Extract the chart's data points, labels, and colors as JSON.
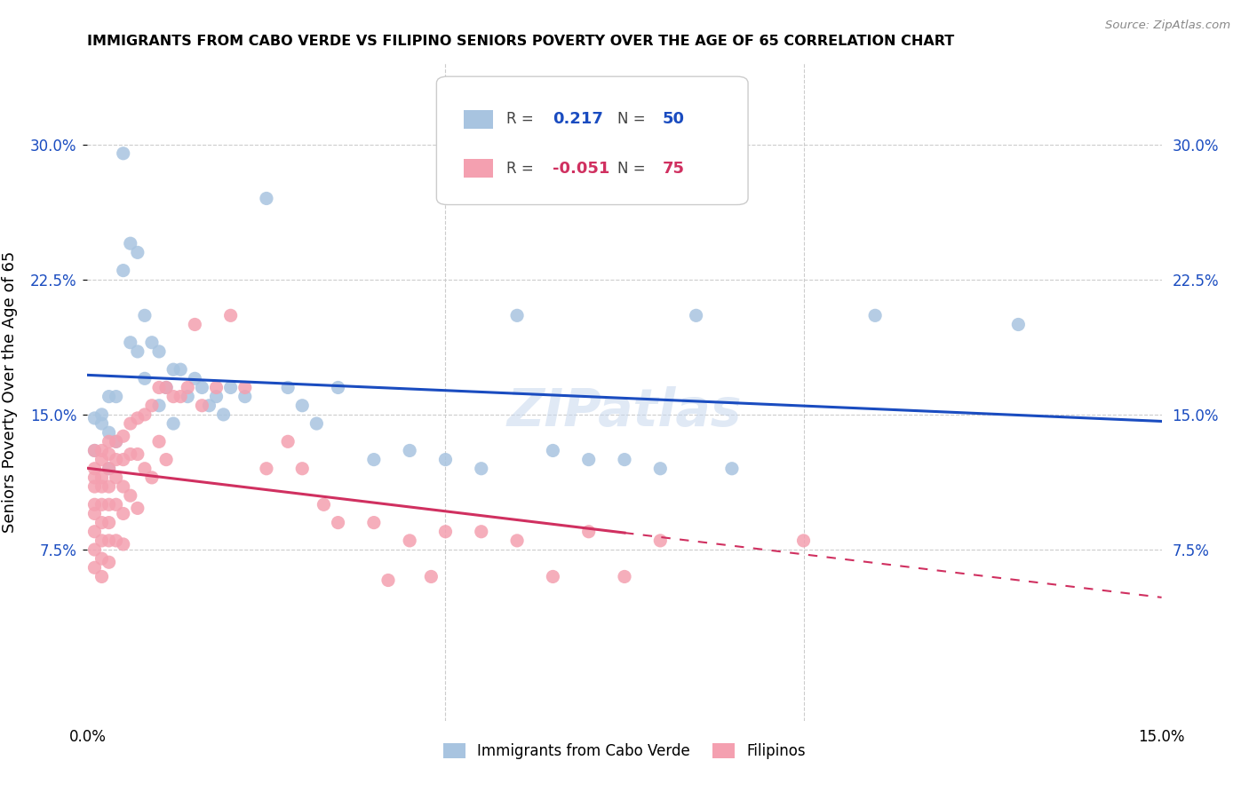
{
  "title": "IMMIGRANTS FROM CABO VERDE VS FILIPINO SENIORS POVERTY OVER THE AGE OF 65 CORRELATION CHART",
  "source": "Source: ZipAtlas.com",
  "ylabel": "Seniors Poverty Over the Age of 65",
  "yticks": [
    0.075,
    0.15,
    0.225,
    0.3
  ],
  "ytick_labels": [
    "7.5%",
    "15.0%",
    "22.5%",
    "30.0%"
  ],
  "xlim": [
    0.0,
    0.15
  ],
  "ylim": [
    -0.02,
    0.345
  ],
  "cabo_verde_color": "#a8c4e0",
  "filipino_color": "#f4a0b0",
  "cabo_verde_line_color": "#1a4cc0",
  "filipino_line_color": "#d03060",
  "cabo_verde_r": "0.217",
  "cabo_verde_n": "50",
  "filipino_r": "-0.051",
  "filipino_n": "75",
  "legend_label_1": "Immigrants from Cabo Verde",
  "legend_label_2": "Filipinos",
  "cabo_verde_x": [
    0.001,
    0.001,
    0.002,
    0.002,
    0.003,
    0.003,
    0.003,
    0.004,
    0.004,
    0.005,
    0.005,
    0.006,
    0.006,
    0.007,
    0.007,
    0.008,
    0.008,
    0.009,
    0.01,
    0.01,
    0.011,
    0.012,
    0.012,
    0.013,
    0.014,
    0.015,
    0.016,
    0.017,
    0.018,
    0.019,
    0.02,
    0.022,
    0.025,
    0.028,
    0.03,
    0.032,
    0.035,
    0.04,
    0.045,
    0.05,
    0.055,
    0.06,
    0.065,
    0.07,
    0.075,
    0.08,
    0.085,
    0.09,
    0.11,
    0.13
  ],
  "cabo_verde_y": [
    0.13,
    0.148,
    0.15,
    0.145,
    0.16,
    0.14,
    0.12,
    0.16,
    0.135,
    0.295,
    0.23,
    0.245,
    0.19,
    0.24,
    0.185,
    0.205,
    0.17,
    0.19,
    0.185,
    0.155,
    0.165,
    0.175,
    0.145,
    0.175,
    0.16,
    0.17,
    0.165,
    0.155,
    0.16,
    0.15,
    0.165,
    0.16,
    0.27,
    0.165,
    0.155,
    0.145,
    0.165,
    0.125,
    0.13,
    0.125,
    0.12,
    0.205,
    0.13,
    0.125,
    0.125,
    0.12,
    0.205,
    0.12,
    0.205,
    0.2
  ],
  "filipino_x": [
    0.001,
    0.001,
    0.001,
    0.001,
    0.001,
    0.001,
    0.001,
    0.001,
    0.001,
    0.002,
    0.002,
    0.002,
    0.002,
    0.002,
    0.002,
    0.002,
    0.002,
    0.002,
    0.003,
    0.003,
    0.003,
    0.003,
    0.003,
    0.003,
    0.003,
    0.003,
    0.004,
    0.004,
    0.004,
    0.004,
    0.004,
    0.005,
    0.005,
    0.005,
    0.005,
    0.005,
    0.006,
    0.006,
    0.006,
    0.007,
    0.007,
    0.007,
    0.008,
    0.008,
    0.009,
    0.009,
    0.01,
    0.01,
    0.011,
    0.011,
    0.012,
    0.013,
    0.014,
    0.015,
    0.016,
    0.018,
    0.02,
    0.022,
    0.025,
    0.028,
    0.03,
    0.033,
    0.035,
    0.04,
    0.042,
    0.045,
    0.048,
    0.05,
    0.055,
    0.06,
    0.065,
    0.07,
    0.075,
    0.08,
    0.1
  ],
  "filipino_y": [
    0.13,
    0.12,
    0.115,
    0.11,
    0.1,
    0.095,
    0.085,
    0.075,
    0.065,
    0.13,
    0.125,
    0.115,
    0.11,
    0.1,
    0.09,
    0.08,
    0.07,
    0.06,
    0.135,
    0.128,
    0.12,
    0.11,
    0.1,
    0.09,
    0.08,
    0.068,
    0.135,
    0.125,
    0.115,
    0.1,
    0.08,
    0.138,
    0.125,
    0.11,
    0.095,
    0.078,
    0.145,
    0.128,
    0.105,
    0.148,
    0.128,
    0.098,
    0.15,
    0.12,
    0.155,
    0.115,
    0.165,
    0.135,
    0.165,
    0.125,
    0.16,
    0.16,
    0.165,
    0.2,
    0.155,
    0.165,
    0.205,
    0.165,
    0.12,
    0.135,
    0.12,
    0.1,
    0.09,
    0.09,
    0.058,
    0.08,
    0.06,
    0.085,
    0.085,
    0.08,
    0.06,
    0.085,
    0.06,
    0.08,
    0.08
  ]
}
